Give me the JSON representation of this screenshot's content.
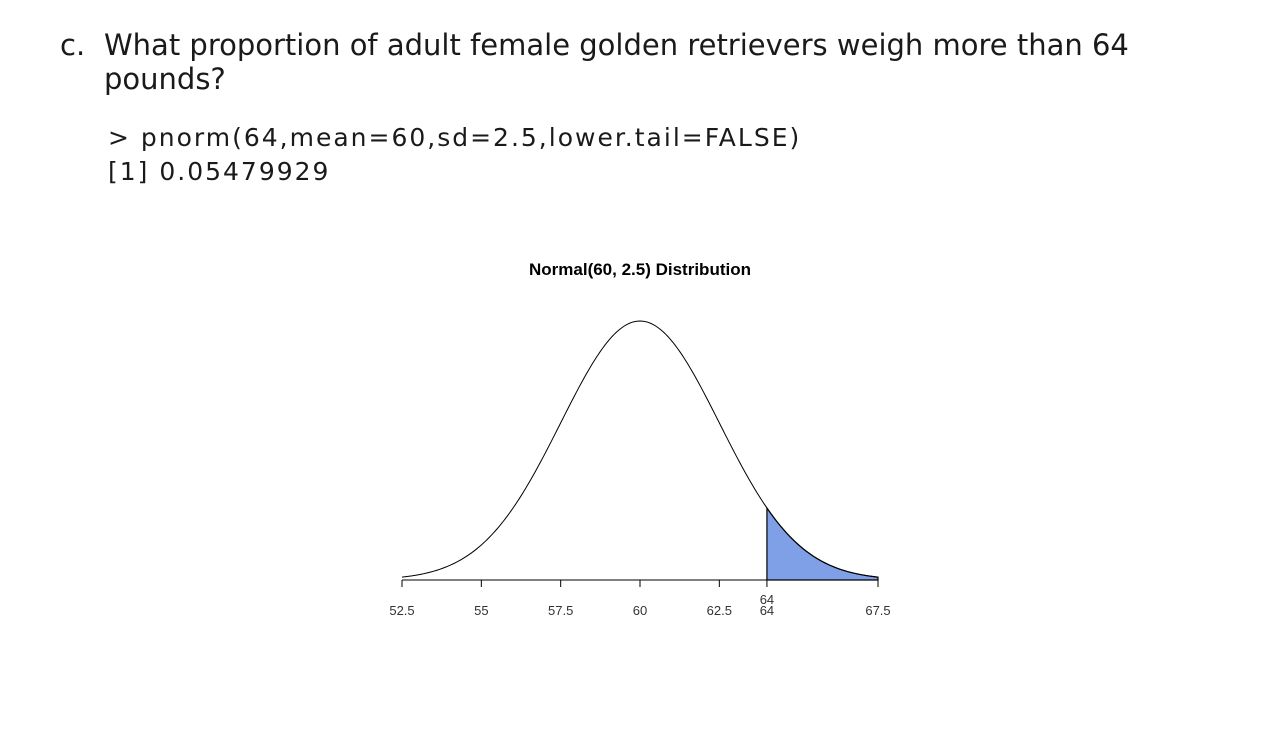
{
  "question": {
    "marker": "c.",
    "text": "What proportion of adult female golden retrievers weigh more than 64 pounds?"
  },
  "code": {
    "command": "> pnorm(64,mean=60,sd=2.5,lower.tail=FALSE)",
    "output": "[1] 0.05479929"
  },
  "chart_data": {
    "type": "area",
    "title": "Normal(60, 2.5) Distribution",
    "distribution": {
      "family": "normal",
      "mean": 60,
      "sd": 2.5
    },
    "xlim": [
      52.5,
      67.5
    ],
    "ticks": [
      52.5,
      55,
      57.5,
      60,
      62.5,
      64,
      67.5
    ],
    "shaded_region": {
      "from": 64,
      "to": 67.5,
      "label": "64",
      "color": "#7f9fe6"
    },
    "xlabel": "",
    "ylabel": "",
    "grid": false
  }
}
